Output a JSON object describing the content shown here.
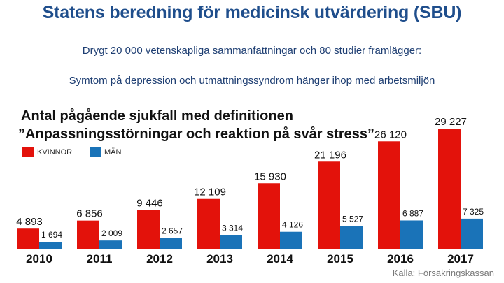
{
  "header": {
    "title": "Statens beredning för medicinsk utvärdering (SBU)",
    "subtitle_1": "Drygt 20 000 vetenskapliga sammanfattningar och 80 studier framlägger:",
    "subtitle_2": "Symtom på depression och utmattningssyndrom hänger ihop med arbetsmiljön"
  },
  "chart_data": {
    "type": "bar",
    "title_line_1": "Antal pågående sjukfall med definitionen",
    "title_line_2": "”Anpassningsstörningar och reaktion på svår stress”",
    "categories": [
      "2010",
      "2011",
      "2012",
      "2013",
      "2014",
      "2015",
      "2016",
      "2017"
    ],
    "series": [
      {
        "name": "KVINNOR",
        "color": "#e3120b",
        "values": [
          4893,
          6856,
          9446,
          12109,
          15930,
          21196,
          26120,
          29227
        ]
      },
      {
        "name": "MÄN",
        "color": "#1a73b8",
        "values": [
          1694,
          2009,
          2657,
          3314,
          4126,
          5527,
          6887,
          7325
        ]
      }
    ],
    "data_labels": {
      "KVINNOR": [
        "4 893",
        "6 856",
        "9 446",
        "12 109",
        "15 930",
        "21 196",
        "26 120",
        "29 227"
      ],
      "MÄN": [
        "1 694",
        "2 009",
        "2 657",
        "3 314",
        "4 126",
        "5 527",
        "6 887",
        "7 325"
      ]
    },
    "legend_position": "top-left",
    "grid": false,
    "source": "Källa: Försäkringskassan"
  }
}
